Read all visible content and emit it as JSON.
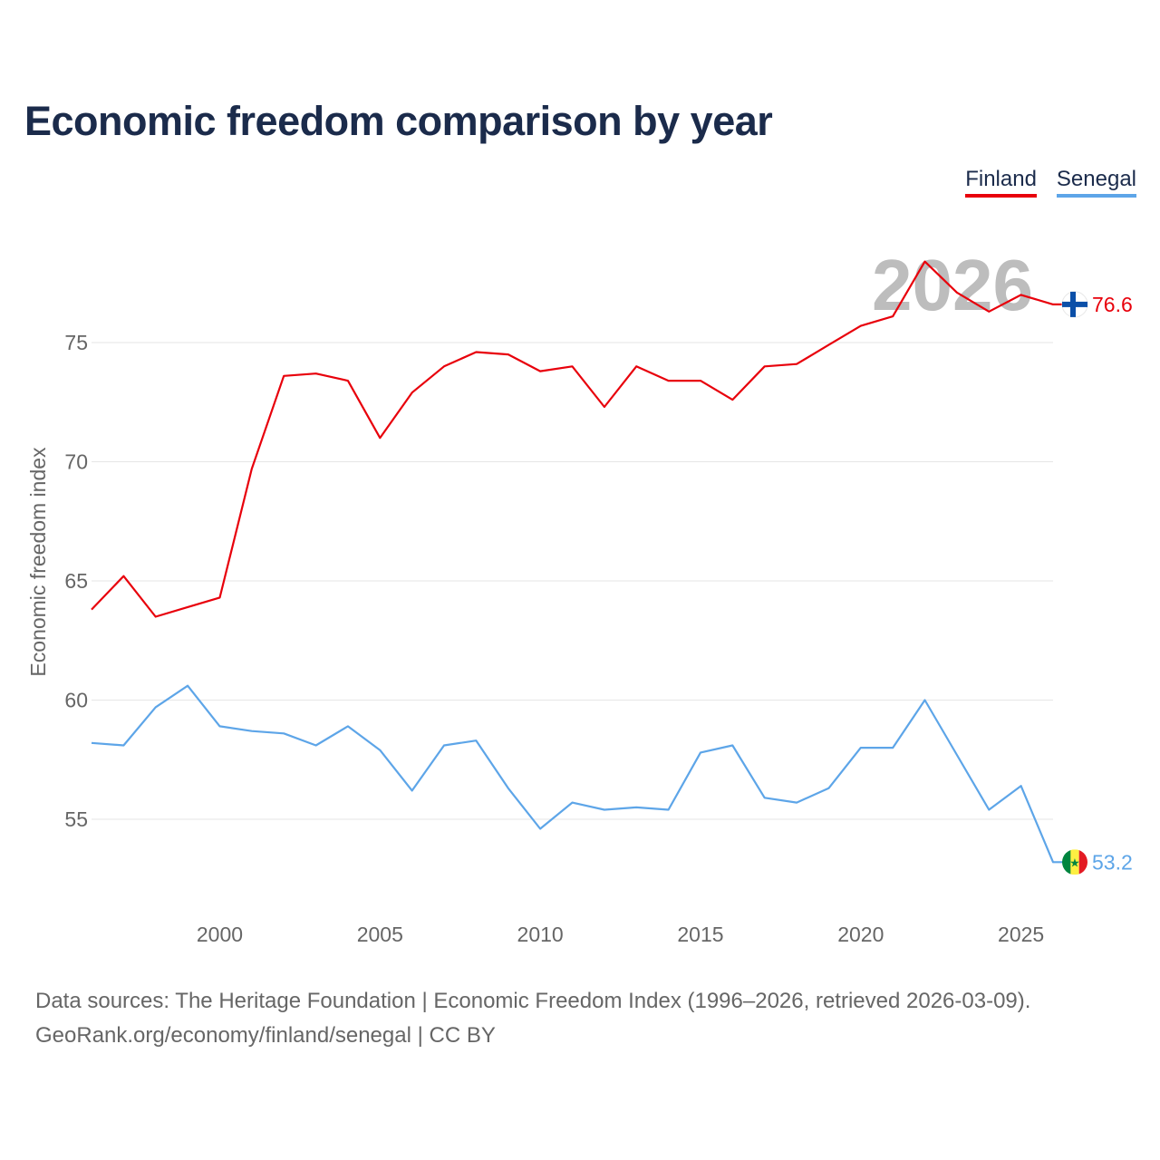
{
  "title": "Economic freedom comparison by year",
  "legend": {
    "finland": "Finland",
    "senegal": "Senegal"
  },
  "current_year": "2026",
  "footer": {
    "line1": "Data sources: The Heritage Foundation | Economic Freedom Index (1996–2026, retrieved 2026-03-09).",
    "line2": "GeoRank.org/economy/finland/senegal | CC BY"
  },
  "colors": {
    "finland": "#e8000b",
    "senegal": "#5da5e8",
    "title": "#1b2b4b",
    "grid": "#e6e6e6",
    "axis_text": "#666666"
  },
  "chart_data": {
    "type": "line",
    "title": "Economic freedom comparison by year",
    "xlabel": "",
    "ylabel": "Economic freedom index",
    "xlim": [
      1996,
      2026
    ],
    "ylim": [
      51.5,
      78.8
    ],
    "x_ticks": [
      2000,
      2005,
      2010,
      2015,
      2020,
      2025
    ],
    "y_ticks": [
      55,
      60,
      65,
      70,
      75
    ],
    "x": [
      1996,
      1997,
      1998,
      1999,
      2000,
      2001,
      2002,
      2003,
      2004,
      2005,
      2006,
      2007,
      2008,
      2009,
      2010,
      2011,
      2012,
      2013,
      2014,
      2015,
      2016,
      2017,
      2018,
      2019,
      2020,
      2021,
      2022,
      2023,
      2024,
      2025,
      2026
    ],
    "series": [
      {
        "name": "Finland",
        "end_label": "76.6",
        "values": [
          63.8,
          65.2,
          63.5,
          63.9,
          64.3,
          69.7,
          73.6,
          73.7,
          73.4,
          71.0,
          72.9,
          74.0,
          74.6,
          74.5,
          73.8,
          74.0,
          72.3,
          74.0,
          73.4,
          73.4,
          72.6,
          74.0,
          74.1,
          74.9,
          75.7,
          76.1,
          78.4,
          77.1,
          76.3,
          77.0,
          76.6
        ]
      },
      {
        "name": "Senegal",
        "end_label": "53.2",
        "values": [
          58.2,
          58.1,
          59.7,
          60.6,
          58.9,
          58.7,
          58.6,
          58.1,
          58.9,
          57.9,
          56.2,
          58.1,
          58.3,
          56.3,
          54.6,
          55.7,
          55.4,
          55.5,
          55.4,
          57.8,
          58.1,
          55.9,
          55.7,
          56.3,
          58.0,
          58.0,
          60.0,
          57.7,
          55.4,
          56.4,
          53.2
        ]
      }
    ]
  }
}
